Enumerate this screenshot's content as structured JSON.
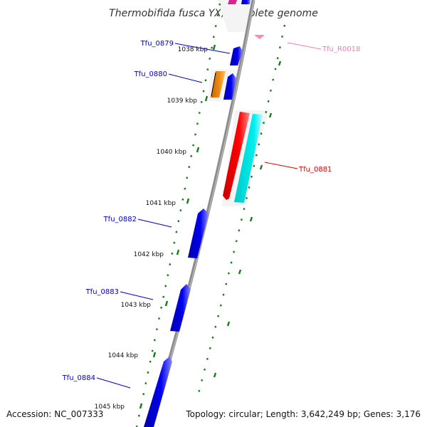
{
  "title": "Thermobifida fusca YX, complete genome",
  "footer": {
    "accession": "Accession: NC_007333",
    "summary": "Topology: circular; Length: 3,642,249 bp; Genes: 3,176"
  },
  "kbp_labels": [
    "1038 kbp",
    "1039 kbp",
    "1040 kbp",
    "1041 kbp",
    "1042 kbp",
    "1043 kbp",
    "1044 kbp",
    "1045 kbp"
  ],
  "genes": [
    {
      "name": "Tfu_0879",
      "color": "#0000cc"
    },
    {
      "name": "Tfu_0880",
      "color": "#0000cc"
    },
    {
      "name": "Tfu_0882",
      "color": "#0000cc"
    },
    {
      "name": "Tfu_0883",
      "color": "#0000cc"
    },
    {
      "name": "Tfu_0884",
      "color": "#0000cc"
    },
    {
      "name": "Tfu_0881",
      "color": "#dd0000"
    },
    {
      "name": "Tfu_R0018",
      "color": "#f080b0"
    }
  ],
  "colors": {
    "backbone": "#8c8c8c",
    "forward_gene": "#0000ee",
    "reverse_gene": "#ff0000",
    "cyan_feature": "#00e5e5",
    "orange_feature": "#f08c10",
    "rna_feature": "#ff88bb",
    "ticks": "#1a7a1a"
  }
}
